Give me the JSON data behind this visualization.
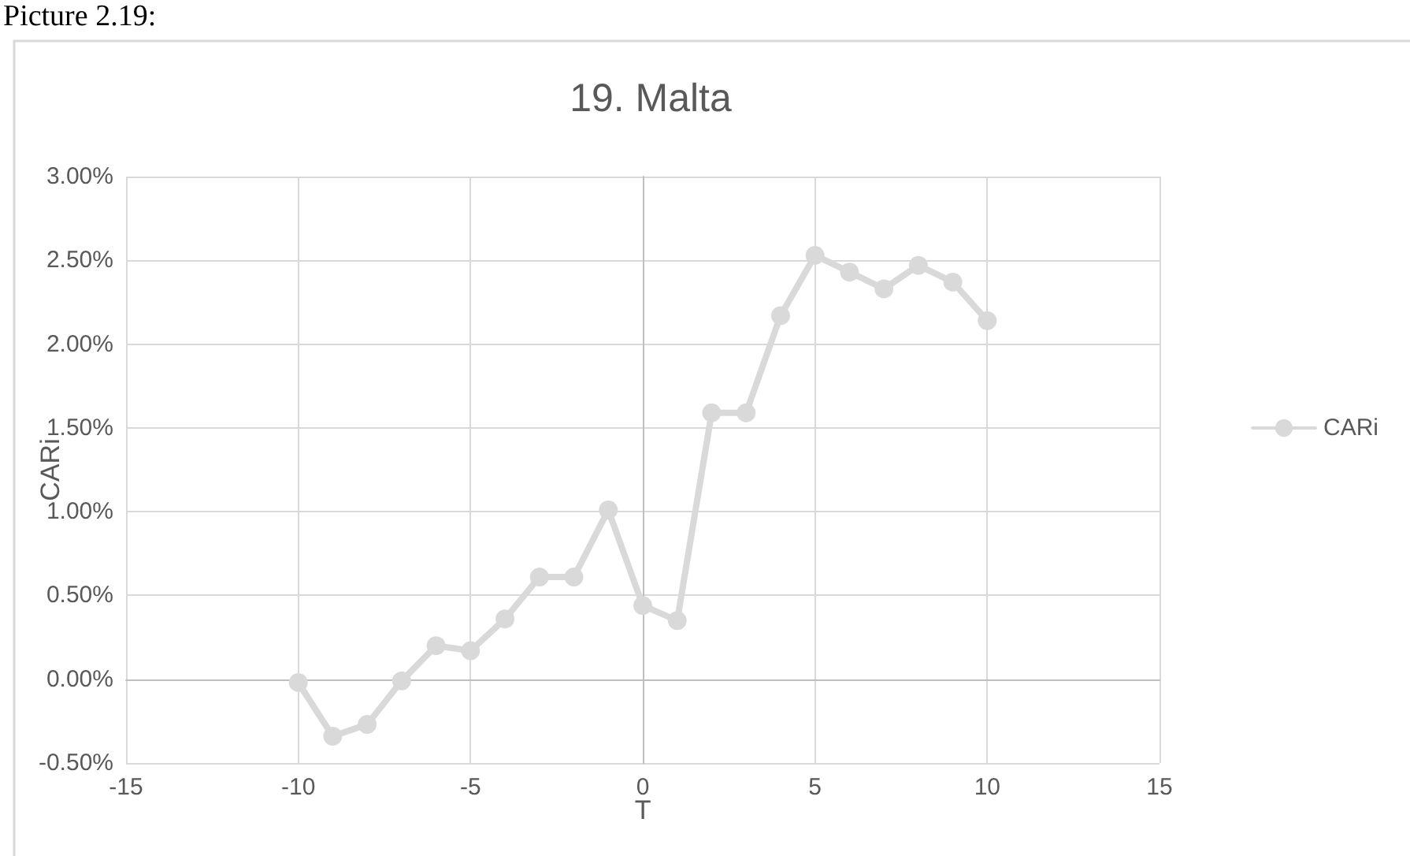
{
  "chart_data": {
    "type": "line",
    "title": "19. Malta",
    "xlabel": "T",
    "ylabel": "CARi",
    "annotations": [
      "Picture 2.19:"
    ],
    "x": [
      -10,
      -9,
      -8,
      -7,
      -6,
      -5,
      -4,
      -3,
      -2,
      -1,
      0,
      1,
      2,
      3,
      4,
      5,
      6,
      7,
      8,
      9,
      10
    ],
    "series": [
      {
        "name": "CARi",
        "color": "#d9d9d9",
        "values": [
          -0.02,
          -0.34,
          -0.27,
          -0.01,
          0.2,
          0.17,
          0.36,
          0.61,
          0.61,
          1.01,
          0.44,
          0.35,
          1.59,
          1.59,
          2.17,
          2.53,
          2.43,
          2.33,
          2.47,
          2.37,
          2.14
        ]
      }
    ],
    "xlim": [
      -15,
      15
    ],
    "xticks": [
      -15,
      -10,
      -5,
      0,
      5,
      10,
      15
    ],
    "ylim": [
      -0.5,
      3
    ],
    "yticks": [
      {
        "value": -0.5,
        "label": "-0.50%"
      },
      {
        "value": 0,
        "label": "0.00%"
      },
      {
        "value": 0.5,
        "label": "0.50%"
      },
      {
        "value": 1,
        "label": "1.00%"
      },
      {
        "value": 1.5,
        "label": "1.50%"
      },
      {
        "value": 2,
        "label": "2.00%"
      },
      {
        "value": 2.5,
        "label": "2.50%"
      },
      {
        "value": 3,
        "label": "3.00%"
      }
    ],
    "grid": true,
    "legend": "right",
    "marker": "circle",
    "line_style": "solid"
  }
}
